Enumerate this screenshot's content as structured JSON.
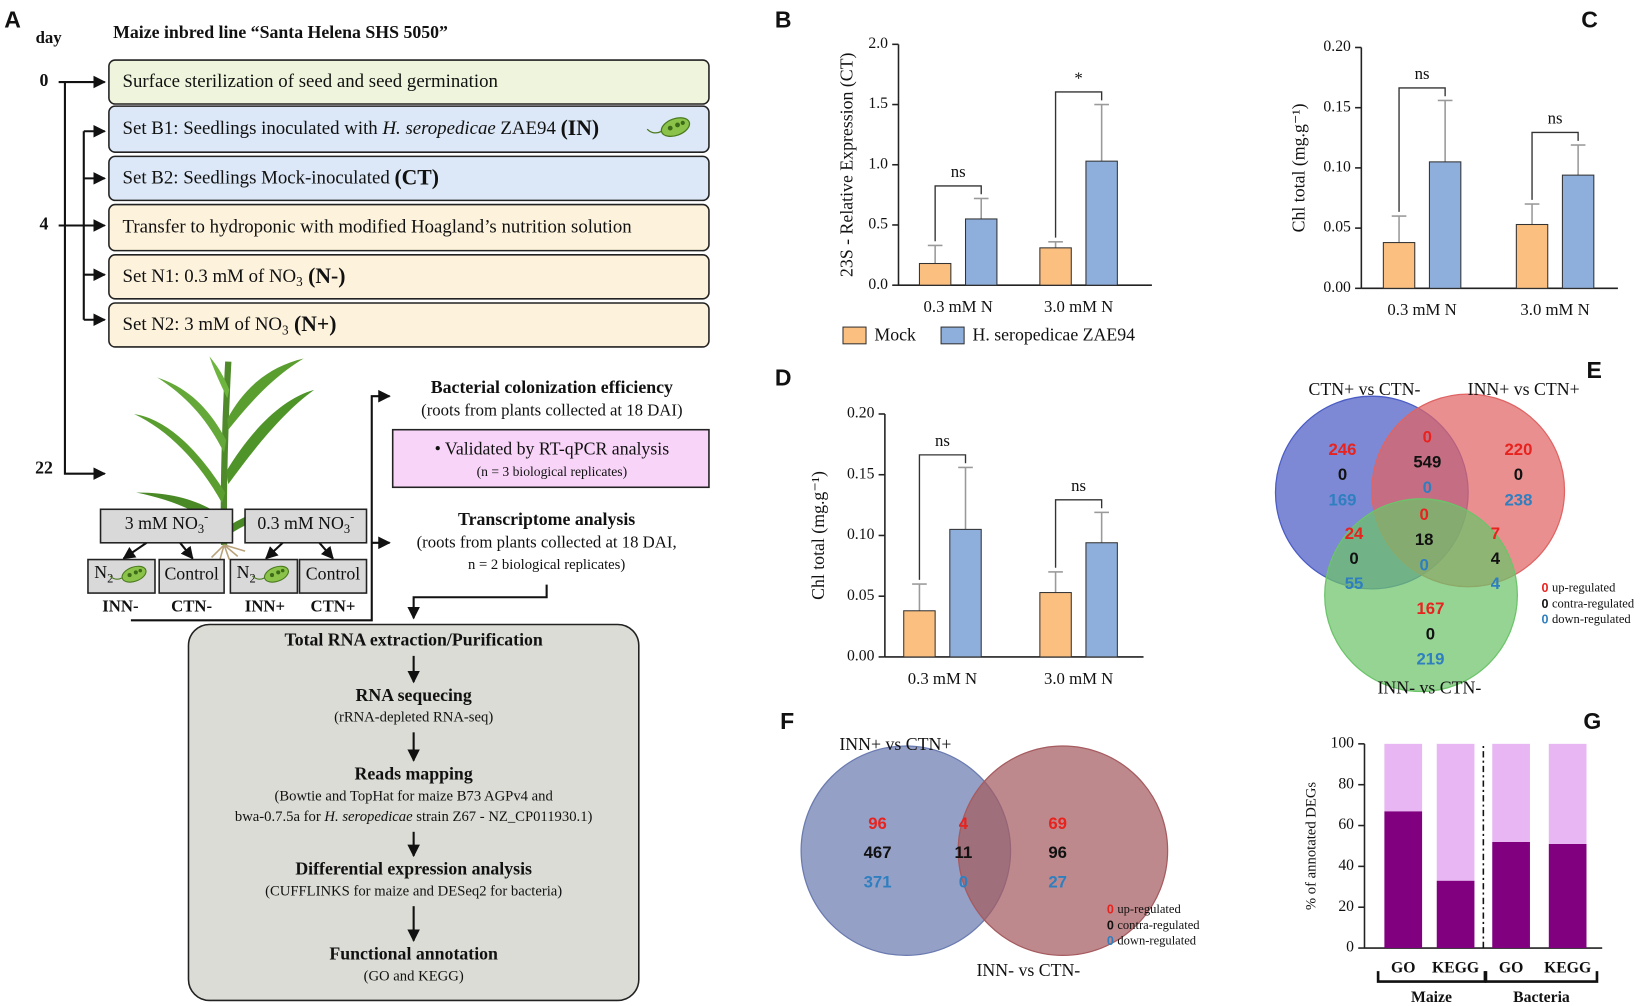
{
  "diagram": {
    "panel": "A",
    "day_label": "day",
    "title": "Maize inbred line “Santa Helena SHS 5050”",
    "days": [
      "0",
      "4",
      "22"
    ],
    "steps": [
      {
        "color": "#eef5dc",
        "parts": [
          {
            "text": "Surface sterilization of seed and seed germination"
          }
        ]
      },
      {
        "color": "#dce8f7",
        "parts": [
          {
            "text": "Set B1: Seedlings inoculated with "
          },
          {
            "text": "H. seropedicae",
            "italic": true
          },
          {
            "text": " ZAE94 "
          },
          {
            "text": "(IN)",
            "bold": true
          }
        ]
      },
      {
        "color": "#dce8f7",
        "parts": [
          {
            "text": "Set B2: Seedlings Mock-inoculated "
          },
          {
            "text": "(CT)",
            "bold": true
          }
        ]
      },
      {
        "color": "#fdf2dc",
        "parts": [
          {
            "text": "Transfer to hydroponic with modified Hoagland’s nutrition solution"
          }
        ]
      },
      {
        "color": "#fdf2dc",
        "parts": [
          {
            "text": "Set N1: 0.3 mM of NO"
          },
          {
            "text": "3",
            "sub": true
          },
          {
            "text": " (N-)",
            "bold": true
          }
        ]
      },
      {
        "color": "#fdf2dc",
        "parts": [
          {
            "text": "Set N2: 3 mM of NO"
          },
          {
            "text": "3",
            "sub": true
          },
          {
            "text": " (N+)",
            "bold": true
          }
        ]
      }
    ],
    "treatments": [
      {
        "parts": [
          {
            "text": "3 mM NO"
          },
          {
            "text": "3",
            "sub": true
          },
          {
            "text": "-",
            "sup": true
          }
        ]
      },
      {
        "parts": [
          {
            "text": "0.3 mM NO"
          },
          {
            "text": "3",
            "sub": true
          },
          {
            "text": "-",
            "sup": true
          }
        ]
      }
    ],
    "conditions": [
      {
        "bacteria": true,
        "parts": [
          {
            "text": "N"
          },
          {
            "text": "2",
            "sub": true
          }
        ]
      },
      {
        "bacteria": false,
        "parts": [
          {
            "text": "Control"
          }
        ]
      },
      {
        "bacteria": true,
        "parts": [
          {
            "text": "N"
          },
          {
            "text": "2",
            "sub": true
          }
        ]
      },
      {
        "bacteria": false,
        "parts": [
          {
            "text": "Control"
          }
        ]
      }
    ],
    "groups": [
      "INN-",
      "CTN-",
      "INN+",
      "CTN+"
    ],
    "colonization": {
      "title": "Bacterial colonization efficiency",
      "subtitle": "(roots from plants collected at 18 DAI)",
      "box": "• Validated by RT-qPCR analysis",
      "note": "(n = 3 biological replicates)"
    },
    "transcriptome": {
      "title": "Transcriptome analysis",
      "lines": [
        "(roots from plants collected at 18 DAI,",
        "n = 2 biological replicates)"
      ]
    },
    "pipeline": [
      {
        "title": "Total RNA extraction/Purification",
        "lines": []
      },
      {
        "title": "RNA sequecing",
        "lines": [
          [
            {
              "text": "(rRNA-depleted RNA-seq)"
            }
          ]
        ]
      },
      {
        "title": "Reads mapping",
        "lines": [
          [
            {
              "text": "(Bowtie and TopHat for maize B73 AGPv4 and"
            }
          ],
          [
            {
              "text": "bwa-0.7.5a for "
            },
            {
              "text": "H. seropedicae",
              "italic": true
            },
            {
              "text": " strain Z67 - NZ_CP011930.1)"
            }
          ]
        ]
      },
      {
        "title": "Differential expression analysis",
        "lines": [
          [
            {
              "text": "(CUFFLINKS for maize and DESeq2 for bacteria)"
            }
          ]
        ]
      },
      {
        "title": "Functional annotation",
        "lines": [
          [
            {
              "text": "(GO and KEGG)"
            }
          ]
        ]
      }
    ]
  },
  "chart_data": [
    {
      "type": "bar",
      "panel": "B",
      "y_label": "23S - Relative Expression (CT)",
      "categories": [
        "0.3 mM N",
        "3.0 mM N"
      ],
      "series": [
        {
          "name": "Mock",
          "color": "#fbbf80",
          "values": [
            0.18,
            0.31
          ],
          "errors": [
            0.15,
            0.05
          ]
        },
        {
          "name": "H. seropedicae ZAE94",
          "color": "#8eaedb",
          "values": [
            0.55,
            1.03
          ],
          "errors": [
            0.17,
            0.47
          ]
        }
      ],
      "annotations": [
        "ns",
        "*"
      ],
      "ylim": [
        0,
        2
      ],
      "yticks": [
        {
          "value": 0,
          "label": "0.0"
        },
        {
          "value": 0.5,
          "label": "0.5"
        },
        {
          "value": 1,
          "label": "1.0"
        },
        {
          "value": 1.5,
          "label": "1.5"
        },
        {
          "value": 2,
          "label": "2.0"
        }
      ],
      "legend": "bottom"
    },
    {
      "type": "bar",
      "panel": "C",
      "y_label": "Chl total (mg.g⁻¹)",
      "categories": [
        "0.3 mM N",
        "3.0 mM N"
      ],
      "series": [
        {
          "color": "#fbbf80",
          "values": [
            0.038,
            0.053
          ],
          "errors": [
            0.022,
            0.017
          ]
        },
        {
          "color": "#8eaedb",
          "values": [
            0.105,
            0.094
          ],
          "errors": [
            0.051,
            0.025
          ]
        }
      ],
      "annotations": [
        "ns",
        "ns"
      ],
      "ylim": [
        0,
        0.2
      ],
      "yticks": [
        {
          "value": 0,
          "label": "0.00"
        },
        {
          "value": 0.05,
          "label": "0.05"
        },
        {
          "value": 0.1,
          "label": "0.10"
        },
        {
          "value": 0.15,
          "label": "0.15"
        },
        {
          "value": 0.2,
          "label": "0.20"
        }
      ]
    },
    {
      "type": "bar",
      "panel": "D",
      "y_label": "Chl total (mg.g⁻¹)",
      "categories": [
        "0.3 mM N",
        "3.0 mM N"
      ],
      "series": [
        {
          "color": "#fbbf80",
          "values": [
            0.038,
            0.053
          ],
          "errors": [
            0.022,
            0.017
          ]
        },
        {
          "color": "#8eaedb",
          "values": [
            0.105,
            0.094
          ],
          "errors": [
            0.051,
            0.025
          ]
        }
      ],
      "annotations": [
        "ns",
        "ns"
      ],
      "ylim": [
        0,
        0.2
      ],
      "yticks": [
        {
          "value": 0,
          "label": "0.00"
        },
        {
          "value": 0.05,
          "label": "0.05"
        },
        {
          "value": 0.1,
          "label": "0.10"
        },
        {
          "value": 0.15,
          "label": "0.15"
        },
        {
          "value": 0.2,
          "label": "0.20"
        }
      ]
    },
    {
      "type": "stacked_bar",
      "panel": "G",
      "y_label": "% of annotated DEGs",
      "categories": [
        "GO",
        "KEGG",
        "GO",
        "KEGG"
      ],
      "groups": [
        "Maize",
        "Bacteria"
      ],
      "series": [
        {
          "color": "#800080",
          "values": [
            67,
            33,
            52,
            51
          ]
        },
        {
          "color": "#e8b6f2",
          "values": [
            33,
            67,
            48,
            49
          ]
        }
      ],
      "ylim": [
        0,
        100
      ],
      "yticks": [
        0,
        20,
        40,
        60,
        80,
        100
      ]
    }
  ],
  "venn_diagrams": [
    {
      "panel": "E",
      "sets": [
        "CTN+ vs CTN-",
        "INN+ vs CTN+",
        "INN- vs CTN-"
      ],
      "colors": [
        "#4b5cc4",
        "#e06464",
        "#6cc46a"
      ],
      "regions": [
        {
          "up": 246,
          "contra": 0,
          "down": 169
        },
        {
          "up": 0,
          "contra": 549,
          "down": 0
        },
        {
          "up": 220,
          "contra": 0,
          "down": 238
        },
        {
          "up": 24,
          "contra": 0,
          "down": 55
        },
        {
          "up": 0,
          "contra": 18,
          "down": 0
        },
        {
          "up": 7,
          "contra": 4,
          "down": 4
        },
        {
          "up": 167,
          "contra": 0,
          "down": 219
        }
      ],
      "legend": [
        {
          "symbol": "0",
          "label": "up-regulated",
          "color": "#e8221e"
        },
        {
          "symbol": "0",
          "label": "contra-regulated",
          "color": "#111111"
        },
        {
          "symbol": "0",
          "label": "down-regulated",
          "color": "#2f7fc0"
        }
      ]
    },
    {
      "panel": "F",
      "sets": [
        "INN+ vs CTN+",
        "INN- vs CTN-"
      ],
      "colors": [
        "#6b7bb0",
        "#a55b5f"
      ],
      "regions": [
        {
          "up": 96,
          "contra": 467,
          "down": 371
        },
        {
          "up": 4,
          "contra": 11,
          "down": 0
        },
        {
          "up": 69,
          "contra": 96,
          "down": 27
        }
      ],
      "legend": [
        {
          "symbol": "0",
          "label": "up-regulated",
          "color": "#e8221e"
        },
        {
          "symbol": "0",
          "label": "contra-regulated",
          "color": "#111111"
        },
        {
          "symbol": "0",
          "label": "down-regulated",
          "color": "#2f7fc0"
        }
      ]
    }
  ]
}
